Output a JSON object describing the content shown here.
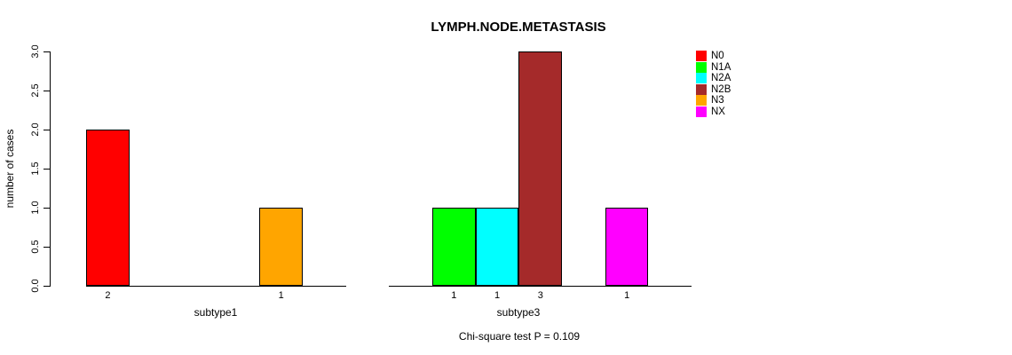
{
  "title": "LYMPH.NODE.METASTASIS",
  "ylabel": "number of cases",
  "footnote": "Chi-square test P = 0.109",
  "axis_color": "#000000",
  "background_color": "#ffffff",
  "yticks": [
    "0.0",
    "0.5",
    "1.0",
    "1.5",
    "2.0",
    "2.5",
    "3.0"
  ],
  "legend": {
    "position": "right",
    "entries": [
      {
        "label": "N0",
        "color": "#FF0000"
      },
      {
        "label": "N1A",
        "color": "#00FF00"
      },
      {
        "label": "N2A",
        "color": "#00FFFF"
      },
      {
        "label": "N2B",
        "color": "#A52A2A"
      },
      {
        "label": "N3",
        "color": "#FFA500"
      },
      {
        "label": "NX",
        "color": "#FF00FF"
      }
    ]
  },
  "chart_data": [
    {
      "type": "bar",
      "xlabel": "subtype1",
      "categories": [
        "N0",
        "N1A",
        "N2A",
        "N2B",
        "N3",
        "NX"
      ],
      "values": [
        2,
        0,
        0,
        0,
        1,
        0
      ],
      "shown_bar_value_labels": [
        "2",
        "1"
      ],
      "ylim": [
        0,
        3
      ],
      "grid": false
    },
    {
      "type": "bar",
      "xlabel": "subtype3",
      "categories": [
        "N0",
        "N1A",
        "N2A",
        "N2B",
        "N3",
        "NX"
      ],
      "values": [
        0,
        1,
        1,
        3,
        0,
        1
      ],
      "shown_bar_value_labels": [
        "1",
        "1",
        "3",
        "1"
      ],
      "ylim": [
        0,
        3
      ],
      "grid": false
    }
  ]
}
